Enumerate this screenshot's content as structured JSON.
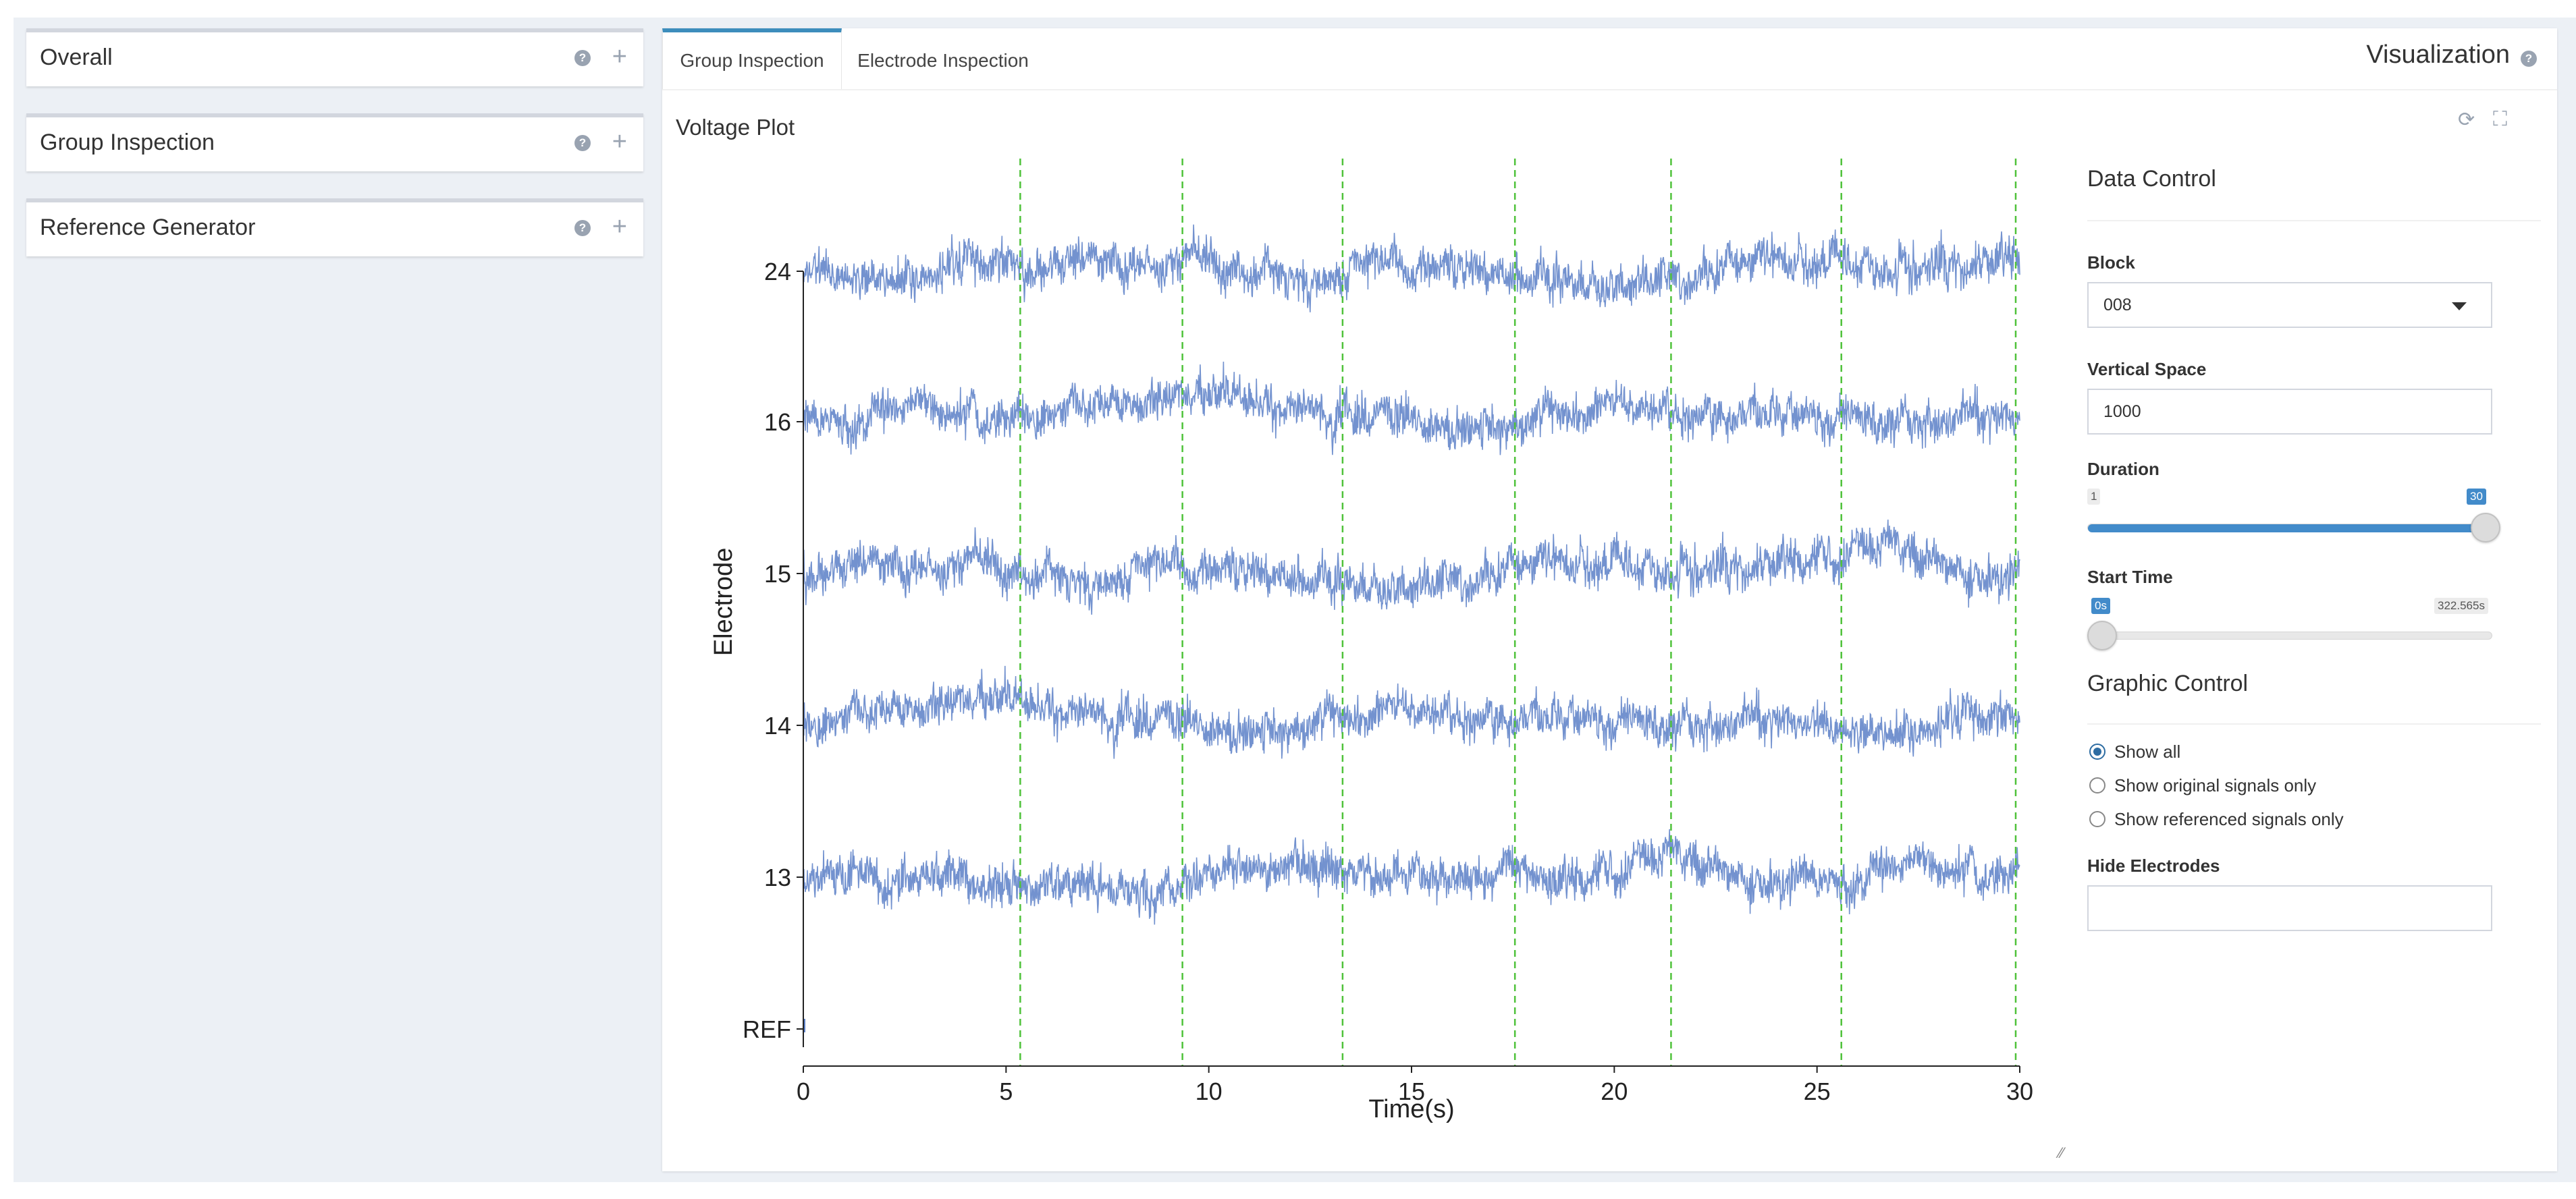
{
  "sidebar": {
    "cards": [
      {
        "title": "Overall",
        "help": "?",
        "expand": "+"
      },
      {
        "title": "Group Inspection",
        "help": "?",
        "expand": "+"
      },
      {
        "title": "Reference Generator",
        "help": "?",
        "expand": "+"
      }
    ]
  },
  "main": {
    "tabs": [
      {
        "label": "Group Inspection",
        "active": true
      },
      {
        "label": "Electrode Inspection",
        "active": false
      }
    ],
    "title": "Visualization",
    "help": "?",
    "plot_title": "Voltage Plot",
    "refresh_icon": "refresh-icon",
    "expand_icon": "expand-icon"
  },
  "controls": {
    "data_control_title": "Data Control",
    "block": {
      "label": "Block",
      "value": "008"
    },
    "vertical_space": {
      "label": "Vertical Space",
      "value": "1000"
    },
    "duration": {
      "label": "Duration",
      "min": "1",
      "max": "30",
      "value": "30",
      "fraction": 1.0
    },
    "start_time": {
      "label": "Start Time",
      "min": "0s",
      "max": "322.565s",
      "value": "0s",
      "fraction": 0.0
    },
    "graphic_control_title": "Graphic Control",
    "radios": [
      {
        "label": "Show all",
        "checked": true
      },
      {
        "label": "Show original signals only",
        "checked": false
      },
      {
        "label": "Show referenced signals only",
        "checked": false
      }
    ],
    "hide_electrodes": {
      "label": "Hide Electrodes",
      "value": ""
    }
  },
  "colors": {
    "accent": "#3c8dbc",
    "slider": "#428bca",
    "signal": "#5b7fc7",
    "marker": "#4fc23a"
  },
  "chart_data": {
    "type": "line",
    "title": "",
    "xlabel": "Time(s)",
    "ylabel": "Electrode",
    "xlim": [
      0,
      30
    ],
    "x_ticks": [
      "0",
      "5",
      "10",
      "15",
      "20",
      "25",
      "30"
    ],
    "y_tick_labels": [
      "REF",
      "13",
      "14",
      "15",
      "16",
      "24"
    ],
    "event_markers_x": [
      5.35,
      9.35,
      13.3,
      17.55,
      21.4,
      25.6,
      29.9
    ],
    "series": [
      {
        "values_desc": "noisy voltage trace"
      },
      {
        "values_desc": "noisy voltage trace"
      }
    ],
    "grid": false,
    "legend": "none"
  }
}
